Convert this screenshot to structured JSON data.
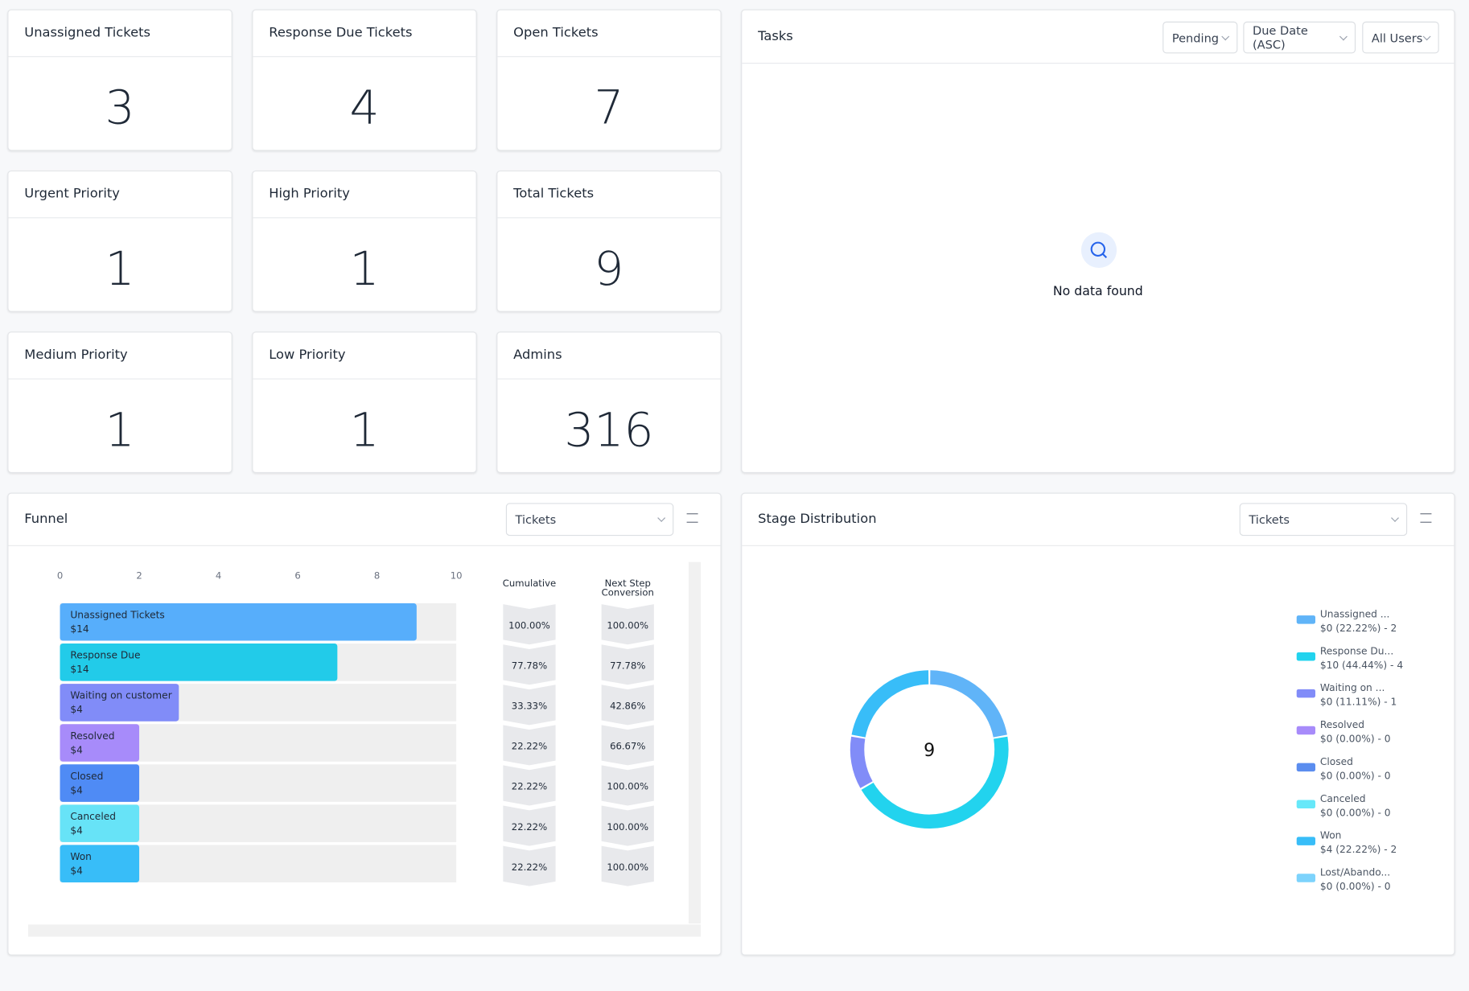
{
  "cards": [
    {
      "title": "Unassigned Tickets",
      "value": 3
    },
    {
      "title": "Response Due Tickets",
      "value": 4
    },
    {
      "title": "Open Tickets",
      "value": 7
    },
    {
      "title": "Urgent Priority",
      "value": 1
    },
    {
      "title": "High Priority",
      "value": 1
    },
    {
      "title": "Total Tickets",
      "value": 9
    },
    {
      "title": "Medium Priority",
      "value": 1
    },
    {
      "title": "Low Priority",
      "value": 1
    },
    {
      "title": "Admins",
      "value": 316
    }
  ],
  "tasks": {
    "title": "Tasks",
    "filters": [
      "Pending",
      "Due Date (ASC)",
      "All Users"
    ],
    "empty": "No data found"
  },
  "funnel_panel": {
    "title": "Funnel",
    "select": "Tickets"
  },
  "stage_panel": {
    "title": "Stage Distribution",
    "select": "Tickets"
  },
  "chart_data": [
    {
      "type": "bar",
      "orientation": "horizontal",
      "categories": [
        "Unassigned Tickets",
        "Response Due",
        "Waiting on customer",
        "Resolved",
        "Closed",
        "Canceled",
        "Won"
      ],
      "values": [
        9,
        7,
        3,
        2,
        2,
        2,
        2
      ],
      "amounts": [
        "$14",
        "$14",
        "$4",
        "$4",
        "$4",
        "$4",
        "$4"
      ],
      "colors": [
        "#57aefb",
        "#22cbe9",
        "#818cf8",
        "#a78bfa",
        "#4f8bf5",
        "#67e3f7",
        "#38bdf8"
      ],
      "xlim": [
        0,
        10
      ],
      "xticks": [
        0,
        2,
        4,
        6,
        8,
        10
      ],
      "columns": [
        {
          "title": "Cumulative",
          "cells": [
            "100.00%",
            "77.78%",
            "33.33%",
            "22.22%",
            "22.22%",
            "22.22%",
            "22.22%"
          ]
        },
        {
          "title": "Next Step Conversion",
          "cells": [
            "100.00%",
            "77.78%",
            "42.86%",
            "66.67%",
            "100.00%",
            "100.00%",
            "100.00%"
          ]
        }
      ]
    },
    {
      "type": "pie",
      "donut": true,
      "total": 9,
      "categories": [
        "Unassigned ...",
        "Response Du...",
        "Waiting on ...",
        "Resolved",
        "Closed",
        "Canceled",
        "Won",
        "Lost/Abando..."
      ],
      "values": [
        2,
        4,
        1,
        0,
        0,
        0,
        2,
        0
      ],
      "value_labels": [
        "$0 (22.22%) - 2",
        "$10 (44.44%) - 4",
        "$0 (11.11%) - 1",
        "$0 (0.00%) - 0",
        "$0 (0.00%) - 0",
        "$0 (0.00%) - 0",
        "$4 (22.22%) - 2",
        "$0 (0.00%) - 0"
      ],
      "colors": [
        "#60b4f8",
        "#22d3ee",
        "#818cf8",
        "#a78bfa",
        "#5b8def",
        "#67e8f9",
        "#38bdf8",
        "#7dd3fc"
      ],
      "legend": "right"
    }
  ]
}
